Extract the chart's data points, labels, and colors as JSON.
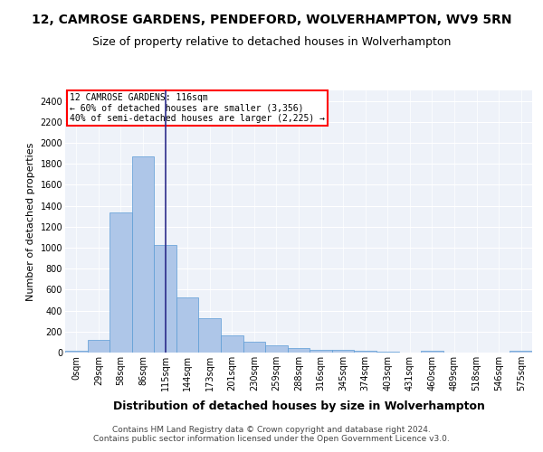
{
  "title": "12, CAMROSE GARDENS, PENDEFORD, WOLVERHAMPTON, WV9 5RN",
  "subtitle": "Size of property relative to detached houses in Wolverhampton",
  "xlabel": "Distribution of detached houses by size in Wolverhampton",
  "ylabel": "Number of detached properties",
  "footer_line1": "Contains HM Land Registry data © Crown copyright and database right 2024.",
  "footer_line2": "Contains public sector information licensed under the Open Government Licence v3.0.",
  "bar_labels": [
    "0sqm",
    "29sqm",
    "58sqm",
    "86sqm",
    "115sqm",
    "144sqm",
    "173sqm",
    "201sqm",
    "230sqm",
    "259sqm",
    "288sqm",
    "316sqm",
    "345sqm",
    "374sqm",
    "403sqm",
    "431sqm",
    "460sqm",
    "489sqm",
    "518sqm",
    "546sqm",
    "575sqm"
  ],
  "bar_values": [
    15,
    120,
    1340,
    1870,
    1030,
    530,
    330,
    160,
    100,
    65,
    40,
    30,
    28,
    20,
    5,
    0,
    20,
    0,
    0,
    0,
    15
  ],
  "bar_color": "#aec6e8",
  "bar_edge_color": "#5b9bd5",
  "vline_x": 4,
  "vline_color": "#2c2c8a",
  "annotation_line1": "12 CAMROSE GARDENS: 116sqm",
  "annotation_line2": "← 60% of detached houses are smaller (3,356)",
  "annotation_line3": "40% of semi-detached houses are larger (2,225) →",
  "annotation_box_color": "white",
  "annotation_box_edge_color": "red",
  "ylim": [
    0,
    2500
  ],
  "yticks": [
    0,
    200,
    400,
    600,
    800,
    1000,
    1200,
    1400,
    1600,
    1800,
    2000,
    2200,
    2400
  ],
  "bg_color": "#eef2f9",
  "grid_color": "white",
  "title_fontsize": 10,
  "subtitle_fontsize": 9,
  "xlabel_fontsize": 9,
  "ylabel_fontsize": 8,
  "tick_fontsize": 7,
  "footer_fontsize": 6.5
}
